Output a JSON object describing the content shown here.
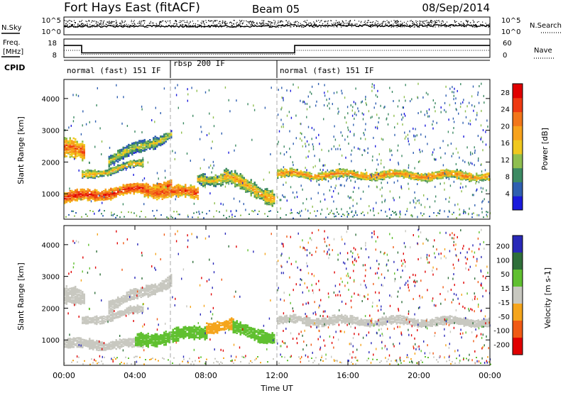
{
  "header": {
    "title": "Fort Hays East (fitACF)",
    "beam": "Beam 05",
    "date": "08/Sep/2014"
  },
  "noise_panel": {
    "left_label": "N.Sky",
    "right_label": "N.Search",
    "left_ticks": [
      "10^5",
      "10^0"
    ],
    "right_ticks": [
      "10^5",
      "10^0"
    ]
  },
  "freq_panel": {
    "left_label_1": "Freq.",
    "left_label_2": "[MHz]",
    "right_label": "Nave",
    "left_ticks": [
      "18",
      "8"
    ],
    "right_ticks": [
      "60",
      "0"
    ],
    "freq_steps": [
      {
        "from_hour": 0,
        "to_hour": 1,
        "freq": 14.5
      },
      {
        "from_hour": 1,
        "to_hour": 13,
        "freq": 10.5
      },
      {
        "from_hour": 13,
        "to_hour": 24,
        "freq": 14.5
      }
    ]
  },
  "cpid_panel": {
    "label": "CPID",
    "segments": [
      {
        "label": "normal (fast) 151 IF",
        "from_hour": 0,
        "to_hour": 6
      },
      {
        "label": "rbsp 200 IF",
        "from_hour": 6,
        "to_hour": 12
      },
      {
        "label": "normal (fast) 151 IF",
        "from_hour": 12,
        "to_hour": 24
      }
    ]
  },
  "colors": {
    "power": [
      "#1a1adc",
      "#2f5fb0",
      "#3d8a63",
      "#8fbf4f",
      "#f0c81e",
      "#f7a21c",
      "#f2761a",
      "#ee3a12",
      "#e00000"
    ],
    "velocity": [
      "#e00000",
      "#f05a14",
      "#f5a51c",
      "#c8c8c0",
      "#60c030",
      "#2f6f3a",
      "#2929b8"
    ]
  },
  "chart_data": [
    {
      "type": "heatmap",
      "name": "power",
      "ylabel": "Slant Range [km]",
      "xlabel": "",
      "xlim": [
        0,
        24
      ],
      "ylim": [
        200,
        4600
      ],
      "yticks": [
        1000,
        2000,
        3000,
        4000
      ],
      "colorbar_label": "Power [dB]",
      "colorbar_ticks": [
        "4",
        "8",
        "12",
        "16",
        "20",
        "24",
        "28"
      ],
      "colorbar_range": [
        0,
        30
      ],
      "bands": [
        {
          "t0": 0.0,
          "t1": 1.2,
          "r_start": 2500,
          "r_end": 2300,
          "width": 500,
          "level": 18
        },
        {
          "t0": 0.0,
          "t1": 6.0,
          "r_start": 900,
          "r_end": 1300,
          "width": 300,
          "level": 22
        },
        {
          "t0": 1.0,
          "t1": 4.5,
          "r_start": 1600,
          "r_end": 2000,
          "width": 200,
          "level": 13
        },
        {
          "t0": 2.5,
          "t1": 6.0,
          "r_start": 2100,
          "r_end": 2900,
          "width": 300,
          "level": 10
        },
        {
          "t0": 4.5,
          "t1": 7.5,
          "r_start": 1150,
          "r_end": 1050,
          "width": 350,
          "level": 20
        },
        {
          "t0": 7.5,
          "t1": 9.0,
          "r_start": 1500,
          "r_end": 1500,
          "width": 300,
          "level": 12
        },
        {
          "t0": 9.0,
          "t1": 11.8,
          "r_start": 1600,
          "r_end": 900,
          "width": 400,
          "level": 14
        },
        {
          "t0": 12.0,
          "t1": 24.0,
          "r_start": 1650,
          "r_end": 1600,
          "width": 220,
          "level": 16
        }
      ]
    },
    {
      "type": "heatmap",
      "name": "velocity",
      "ylabel": "Slant Range [km]",
      "xlabel": "Time UT",
      "xlim": [
        0,
        24
      ],
      "ylim": [
        200,
        4600
      ],
      "yticks": [
        1000,
        2000,
        3000,
        4000
      ],
      "xticks": [
        "00:00",
        "04:00",
        "08:00",
        "12:00",
        "16:00",
        "20:00",
        "00:00"
      ],
      "colorbar_label": "Velocity [m s-1]",
      "colorbar_ticks": [
        "200",
        "100",
        "50",
        "15",
        "-15",
        "-50",
        "-100",
        "-200"
      ],
      "bands": [
        {
          "t0": 0.0,
          "t1": 1.2,
          "r_start": 2450,
          "r_end": 2300,
          "width": 450,
          "level": 0
        },
        {
          "t0": 0.0,
          "t1": 4.5,
          "r_start": 900,
          "r_end": 900,
          "width": 250,
          "level": -5
        },
        {
          "t0": 1.0,
          "t1": 4.5,
          "r_start": 1600,
          "r_end": 2000,
          "width": 200,
          "level": 0
        },
        {
          "t0": 2.5,
          "t1": 6.0,
          "r_start": 2100,
          "r_end": 2900,
          "width": 300,
          "level": 0
        },
        {
          "t0": 4.0,
          "t1": 8.0,
          "r_start": 1000,
          "r_end": 1300,
          "width": 350,
          "level": 30
        },
        {
          "t0": 8.0,
          "t1": 9.5,
          "r_start": 1450,
          "r_end": 1500,
          "width": 300,
          "level": -30
        },
        {
          "t0": 9.5,
          "t1": 11.8,
          "r_start": 1400,
          "r_end": 1100,
          "width": 350,
          "level": 30
        },
        {
          "t0": 12.0,
          "t1": 24.0,
          "r_start": 1650,
          "r_end": 1600,
          "width": 220,
          "level": 0
        }
      ]
    }
  ]
}
